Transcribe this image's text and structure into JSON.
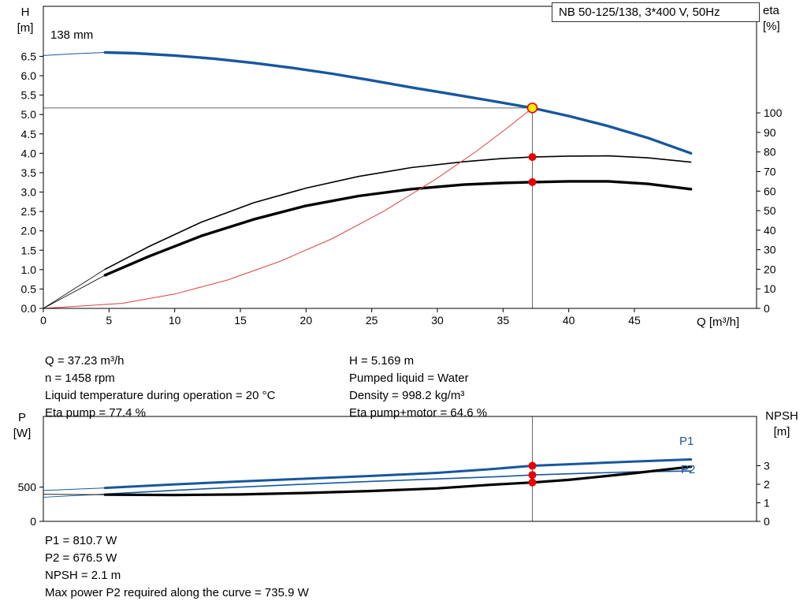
{
  "title_box": "NB 50-125/138, 3*400 V, 50Hz",
  "impeller_diameter_label": "138 mm",
  "axes_labels": {
    "h_unit_top": "H",
    "h_unit_bottom": "[m]",
    "eta_unit_top": "eta",
    "eta_unit_bottom": "[%]",
    "q_label": "Q [m³/h]",
    "p_unit_top": "P",
    "p_unit_bottom": "[W]",
    "npsh_unit_top": "NPSH",
    "npsh_unit_bottom": "[m]"
  },
  "curve_labels": {
    "p1": "P1",
    "p2": "P2"
  },
  "info_top": {
    "left": [
      "Q = 37.23 m³/h",
      "n = 1458 rpm",
      "Liquid temperature during operation = 20 °C",
      "Eta pump = 77.4 %"
    ],
    "right": [
      "H = 5.169 m",
      "Pumped liquid = Water",
      "Density = 998.2 kg/m³",
      "Eta pump+motor = 64.6 %"
    ]
  },
  "info_bottom": [
    "P1 = 810.7 W",
    "P2 = 676.5 W",
    "NPSH = 2.1 m",
    "Max power P2 required along the curve = 735.9 W"
  ],
  "colors": {
    "curve_blue": "#17579e",
    "curve_black": "#000000",
    "system_red": "#e04040",
    "marker_red": "#e60000",
    "marker_yellow": "#ffe800",
    "ref_line": "#666666"
  },
  "chart_data": [
    {
      "type": "line",
      "name": "qh-eta-chart",
      "title": "NB 50-125/138, 3*400 V, 50Hz",
      "xlabel": "Q [m³/h]",
      "ylabel_left": "H [m]",
      "ylabel_right": "eta [%]",
      "grid": false,
      "legend": "none",
      "x_axis": {
        "min": 0,
        "max": 54.3,
        "ticks": [
          [
            0,
            "0"
          ],
          [
            5,
            "5"
          ],
          [
            10,
            "10"
          ],
          [
            15,
            "15"
          ],
          [
            20,
            "20"
          ],
          [
            25,
            "25"
          ],
          [
            30,
            "30"
          ],
          [
            35,
            "35"
          ],
          [
            40,
            "40"
          ],
          [
            45,
            "45"
          ]
        ]
      },
      "y_left_axis": {
        "min": 0,
        "max": 7.79,
        "ticks": [
          [
            0,
            "0.0"
          ],
          [
            0.5,
            "0.5"
          ],
          [
            1,
            "1.0"
          ],
          [
            1.5,
            "1.5"
          ],
          [
            2,
            "2.0"
          ],
          [
            2.5,
            "2.5"
          ],
          [
            3,
            "3.0"
          ],
          [
            3.5,
            "3.5"
          ],
          [
            4,
            "4.0"
          ],
          [
            4.5,
            "4.5"
          ],
          [
            5,
            "5.0"
          ],
          [
            5.5,
            "5.5"
          ],
          [
            6,
            "6.0"
          ],
          [
            6.5,
            "6.5"
          ]
        ]
      },
      "y_right_axis": {
        "min": 0,
        "max": 154.5,
        "ticks": [
          [
            0,
            "0"
          ],
          [
            10,
            "10"
          ],
          [
            20,
            "20"
          ],
          [
            30,
            "30"
          ],
          [
            40,
            "40"
          ],
          [
            50,
            "50"
          ],
          [
            60,
            "60"
          ],
          [
            70,
            "70"
          ],
          [
            80,
            "80"
          ],
          [
            90,
            "90"
          ],
          [
            100,
            "100"
          ]
        ]
      },
      "series": [
        {
          "name": "qh-below-min-flow",
          "axis": "left",
          "color": "#17579e",
          "width": 1,
          "points": [
            [
              0,
              6.52
            ],
            [
              2.5,
              6.57
            ],
            [
              4.7,
              6.6
            ]
          ]
        },
        {
          "name": "qh-curve",
          "axis": "left",
          "color": "#17579e",
          "width": 3.4,
          "points": [
            [
              4.7,
              6.6
            ],
            [
              7,
              6.58
            ],
            [
              10,
              6.52
            ],
            [
              13,
              6.44
            ],
            [
              16,
              6.33
            ],
            [
              19,
              6.2
            ],
            [
              22,
              6.05
            ],
            [
              25,
              5.88
            ],
            [
              28,
              5.7
            ],
            [
              31,
              5.53
            ],
            [
              34,
              5.36
            ],
            [
              37.23,
              5.169
            ],
            [
              40,
              4.96
            ],
            [
              43,
              4.7
            ],
            [
              46,
              4.4
            ],
            [
              49.3,
              4.0
            ]
          ]
        },
        {
          "name": "eta-pump-below-min-flow",
          "axis": "right",
          "color": "#000000",
          "width": 0.8,
          "points": [
            [
              0,
              0
            ],
            [
              4.7,
              20
            ]
          ]
        },
        {
          "name": "eta-pump-curve",
          "axis": "right",
          "color": "#000000",
          "width": 1.6,
          "points": [
            [
              4.7,
              20
            ],
            [
              8,
              31.5
            ],
            [
              12,
              44
            ],
            [
              16,
              54
            ],
            [
              20,
              61.5
            ],
            [
              24,
              67.5
            ],
            [
              28,
              72
            ],
            [
              32,
              75
            ],
            [
              35,
              76.7
            ],
            [
              37.23,
              77.4
            ],
            [
              40,
              77.9
            ],
            [
              43,
              78
            ],
            [
              46,
              77
            ],
            [
              49.3,
              74.8
            ]
          ]
        },
        {
          "name": "eta-pump-motor-below-min-flow",
          "axis": "right",
          "color": "#000000",
          "width": 0.8,
          "points": [
            [
              0,
              0
            ],
            [
              4.7,
              17
            ]
          ]
        },
        {
          "name": "eta-pump-motor-curve",
          "axis": "right",
          "color": "#000000",
          "width": 3.4,
          "points": [
            [
              4.7,
              17
            ],
            [
              8,
              26.5
            ],
            [
              12,
              37
            ],
            [
              16,
              45.5
            ],
            [
              20,
              52.5
            ],
            [
              24,
              57.5
            ],
            [
              28,
              61
            ],
            [
              32,
              63.3
            ],
            [
              35,
              64.2
            ],
            [
              37.23,
              64.6
            ],
            [
              40,
              65
            ],
            [
              43,
              65
            ],
            [
              46,
              63.7
            ],
            [
              49.3,
              61
            ]
          ]
        },
        {
          "name": "system-curve",
          "axis": "left",
          "color": "#e04040",
          "width": 1,
          "points": [
            [
              0,
              0
            ],
            [
              6,
              0.13
            ],
            [
              10,
              0.37
            ],
            [
              14,
              0.73
            ],
            [
              18,
              1.21
            ],
            [
              22,
              1.8
            ],
            [
              26,
              2.52
            ],
            [
              30,
              3.36
            ],
            [
              33,
              4.06
            ],
            [
              35.5,
              4.7
            ],
            [
              37.23,
              5.169
            ]
          ]
        }
      ],
      "ref_lines": [
        {
          "orient": "h",
          "value": 5.169,
          "axis": "left",
          "from_x": 0,
          "to_x": 37.23
        },
        {
          "orient": "v",
          "value": 37.23,
          "axis": "left",
          "from_y": 0,
          "to_y": 5.169
        }
      ],
      "markers": [
        {
          "x": 37.23,
          "y": 5.169,
          "axis": "left",
          "style": "operating-point"
        },
        {
          "x": 37.23,
          "y": 77.4,
          "axis": "right",
          "style": "dot"
        },
        {
          "x": 37.23,
          "y": 64.6,
          "axis": "right",
          "style": "dot"
        }
      ],
      "operating_point": {
        "Q_m3h": 37.23,
        "H_m": 5.169,
        "eta_pump_pct": 77.4,
        "eta_pump_motor_pct": 64.6
      }
    },
    {
      "type": "line",
      "name": "power-npsh-chart",
      "title": "",
      "xlabel": "",
      "ylabel_left": "P [W]",
      "ylabel_right": "NPSH [m]",
      "grid": false,
      "legend": "none",
      "x_axis": {
        "min": 0,
        "max": 54.3,
        "ticks": []
      },
      "y_left_axis": {
        "min": 0,
        "max": 1530,
        "ticks": [
          [
            0,
            "0"
          ],
          [
            500,
            "500"
          ]
        ]
      },
      "y_right_axis": {
        "min": 0,
        "max": 5.66,
        "ticks": [
          [
            0,
            "0"
          ],
          [
            1,
            "1"
          ],
          [
            2,
            "2"
          ],
          [
            3,
            "3"
          ]
        ]
      },
      "series": [
        {
          "name": "p1-below-min-flow",
          "axis": "left",
          "color": "#17579e",
          "width": 1,
          "points": [
            [
              0,
              450
            ],
            [
              4.7,
              488
            ]
          ]
        },
        {
          "name": "p1-curve",
          "axis": "left",
          "color": "#17579e",
          "width": 3,
          "points": [
            [
              4.7,
              488
            ],
            [
              10,
              540
            ],
            [
              15,
              582
            ],
            [
              20,
              622
            ],
            [
              25,
              663
            ],
            [
              30,
              708
            ],
            [
              34,
              760
            ],
            [
              37.23,
              810.7
            ],
            [
              40,
              833
            ],
            [
              45,
              873
            ],
            [
              49.3,
              903
            ]
          ]
        },
        {
          "name": "p2-below-min-flow",
          "axis": "left",
          "color": "#17579e",
          "width": 0.9,
          "points": [
            [
              0,
              352
            ],
            [
              4.7,
              398
            ]
          ]
        },
        {
          "name": "p2-curve",
          "axis": "left",
          "color": "#17579e",
          "width": 1.6,
          "points": [
            [
              4.7,
              398
            ],
            [
              10,
              452
            ],
            [
              15,
              499
            ],
            [
              20,
              543
            ],
            [
              25,
              583
            ],
            [
              30,
              619
            ],
            [
              35,
              655
            ],
            [
              37.23,
              676.5
            ],
            [
              40,
              694
            ],
            [
              45,
              722
            ],
            [
              49.3,
              734
            ]
          ]
        },
        {
          "name": "npsh-below-min-flow",
          "axis": "right",
          "color": "#000000",
          "width": 0.9,
          "points": [
            [
              0,
              1.46
            ],
            [
              4.7,
              1.44
            ]
          ]
        },
        {
          "name": "npsh-curve",
          "axis": "right",
          "color": "#000000",
          "width": 3.2,
          "points": [
            [
              4.7,
              1.44
            ],
            [
              10,
              1.42
            ],
            [
              15,
              1.45
            ],
            [
              20,
              1.53
            ],
            [
              25,
              1.64
            ],
            [
              30,
              1.78
            ],
            [
              34,
              1.97
            ],
            [
              37.23,
              2.1
            ],
            [
              40,
              2.24
            ],
            [
              45,
              2.6
            ],
            [
              49.3,
              2.95
            ]
          ]
        }
      ],
      "ref_lines": [
        {
          "orient": "v",
          "value": 37.23,
          "axis": "left",
          "from_y": 0,
          "to_y": 1530
        }
      ],
      "markers": [
        {
          "x": 37.23,
          "y": 810.7,
          "axis": "left",
          "style": "dot"
        },
        {
          "x": 37.23,
          "y": 676.5,
          "axis": "left",
          "style": "dot"
        },
        {
          "x": 37.23,
          "y": 2.1,
          "axis": "right",
          "style": "dot"
        }
      ],
      "curve_point_values": {
        "P1_W": 810.7,
        "P2_W": 676.5,
        "NPSH_m": 2.1
      }
    }
  ]
}
